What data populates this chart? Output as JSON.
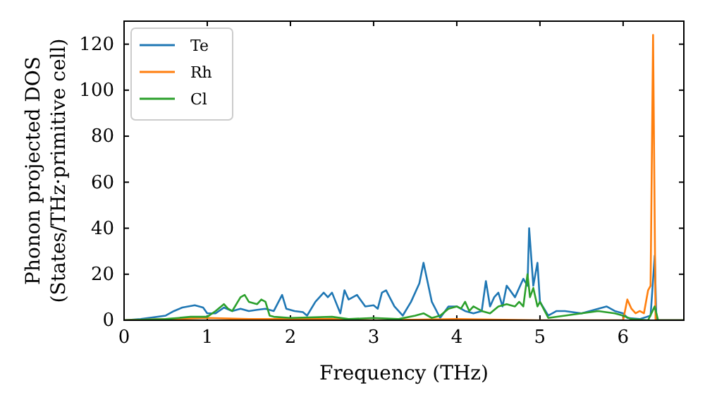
{
  "chart_data": {
    "type": "line",
    "xlabel": "Frequency (THz)",
    "ylabel": "Phonon projected DOS\n(States/THz·primitive cell)",
    "xlim": [
      0,
      6.73
    ],
    "ylim": [
      0,
      130
    ],
    "xticks": [
      0,
      1,
      2,
      3,
      4,
      5,
      6
    ],
    "yticks": [
      0,
      20,
      40,
      60,
      80,
      100,
      120
    ],
    "legend": "top left",
    "grid": false,
    "series": [
      {
        "name": "Te",
        "color": "#1f77b4",
        "x": [
          0,
          0.2,
          0.5,
          0.6,
          0.7,
          0.85,
          0.95,
          1.0,
          1.1,
          1.2,
          1.3,
          1.4,
          1.5,
          1.6,
          1.7,
          1.8,
          1.9,
          1.95,
          2.05,
          2.15,
          2.2,
          2.3,
          2.4,
          2.45,
          2.5,
          2.6,
          2.65,
          2.7,
          2.8,
          2.9,
          3.0,
          3.05,
          3.1,
          3.15,
          3.25,
          3.35,
          3.45,
          3.55,
          3.6,
          3.7,
          3.8,
          3.9,
          4.0,
          4.1,
          4.2,
          4.3,
          4.35,
          4.4,
          4.45,
          4.5,
          4.55,
          4.6,
          4.7,
          4.8,
          4.85,
          4.87,
          4.92,
          4.97,
          5.0,
          5.1,
          5.2,
          5.3,
          5.5,
          5.7,
          5.8,
          5.9,
          6.0,
          6.05,
          6.2,
          6.33,
          6.38,
          6.4,
          6.73
        ],
        "values": [
          0,
          0.5,
          2,
          4,
          5.5,
          6.5,
          5.5,
          3,
          3,
          5.5,
          4,
          5,
          4,
          4.5,
          5,
          4,
          11,
          5,
          4,
          3.5,
          2,
          8,
          12,
          10,
          12,
          3,
          13,
          9,
          11,
          6,
          6.5,
          5,
          12,
          13,
          6,
          2,
          8,
          16,
          25,
          8,
          1,
          6,
          6,
          4,
          3,
          4,
          17,
          6,
          10,
          12,
          6,
          15,
          10,
          18,
          15,
          40,
          15,
          25,
          8,
          2,
          4,
          4,
          3,
          5,
          6,
          4,
          3,
          1,
          0.5,
          2,
          28,
          0,
          0
        ]
      },
      {
        "name": "Rh",
        "color": "#ff7f0e",
        "x": [
          0,
          0.5,
          1.0,
          1.5,
          2.5,
          3.0,
          4.0,
          5.0,
          6.0,
          6.05,
          6.1,
          6.15,
          6.2,
          6.25,
          6.3,
          6.33,
          6.36,
          6.39,
          6.73
        ],
        "values": [
          0,
          0.5,
          1,
          0.5,
          0.5,
          0,
          0.5,
          0,
          0,
          9,
          5,
          3,
          4,
          3,
          13,
          15,
          124,
          0,
          0
        ]
      },
      {
        "name": "Cl",
        "color": "#2ca02c",
        "x": [
          0,
          0.5,
          0.8,
          1.0,
          1.1,
          1.2,
          1.25,
          1.3,
          1.4,
          1.45,
          1.5,
          1.6,
          1.65,
          1.7,
          1.75,
          1.8,
          2.0,
          2.5,
          2.7,
          3.0,
          3.3,
          3.5,
          3.6,
          3.7,
          3.8,
          3.9,
          4.0,
          4.05,
          4.1,
          4.15,
          4.2,
          4.3,
          4.4,
          4.5,
          4.6,
          4.7,
          4.75,
          4.8,
          4.85,
          4.88,
          4.92,
          4.97,
          5.0,
          5.1,
          5.3,
          5.5,
          5.7,
          5.9,
          6.0,
          6.1,
          6.3,
          6.38,
          6.42,
          6.73
        ],
        "values": [
          0,
          0.5,
          1.5,
          1.5,
          4,
          7,
          5,
          4,
          10,
          11,
          8,
          7,
          9,
          8,
          2,
          1.5,
          1,
          1.5,
          0.5,
          1,
          0.5,
          2,
          3,
          1,
          2,
          5,
          6,
          5,
          8,
          4,
          6,
          4,
          3,
          6,
          7,
          6,
          8,
          6,
          20,
          10,
          14,
          6,
          8,
          1,
          2,
          3,
          4,
          3,
          2,
          0.5,
          0,
          6,
          0,
          0
        ]
      }
    ]
  }
}
